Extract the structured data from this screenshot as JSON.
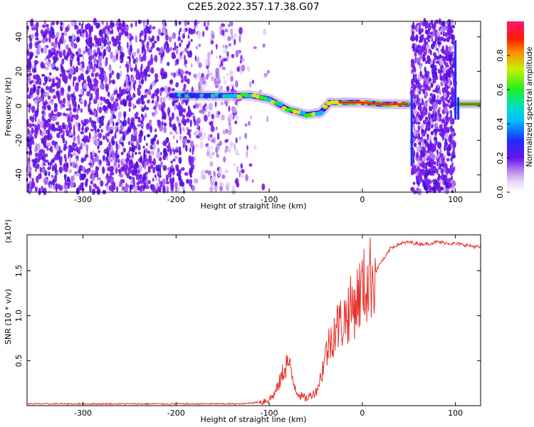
{
  "title": "C2E5.2022.357.17.38.G07",
  "chart_data": [
    {
      "type": "heatmap",
      "xlabel": "Height of straight line (km)",
      "ylabel": "Frequency (Hz)",
      "xlim": [
        -360,
        127
      ],
      "ylim": [
        -50,
        49
      ],
      "xticks": [
        -300,
        -200,
        -100,
        0,
        100
      ],
      "yticks": [
        -40,
        -20,
        0,
        20,
        40
      ],
      "colorbar": {
        "label": "Normalized spectral amplitude",
        "range": [
          0.0,
          1.0
        ],
        "ticks": [
          "0.0",
          "0.2",
          "0.4",
          "0.6",
          "0.8"
        ],
        "colormap": "hsv-rainbow (white-lavender-purple-blue-cyan-green-yellow-red-magenta)"
      },
      "ridge_line": {
        "x": [
          -205,
          -160,
          -140,
          -120,
          -100,
          -80,
          -60,
          -45,
          -35,
          -20,
          0,
          20,
          50
        ],
        "y": [
          6,
          6,
          6,
          6,
          4,
          -2,
          -5,
          -4,
          2,
          2,
          2,
          1,
          1
        ]
      },
      "tone_line_x_gt_100": 1
    },
    {
      "type": "line",
      "xlabel": "Height of straight line (km)",
      "ylabel": "SNR (10 * v/v)",
      "y_multiplier": "(x10⁴)",
      "xlim": [
        -360,
        127
      ],
      "ylim": [
        0,
        1.9
      ],
      "xticks": [
        -300,
        -200,
        -100,
        0,
        100
      ],
      "yticks": [
        "0.5",
        "1.0",
        "1.5"
      ],
      "series": [
        {
          "color": "#e8302a",
          "x": [
            -360,
            -300,
            -200,
            -130,
            -110,
            -100,
            -95,
            -90,
            -85,
            -80,
            -75,
            -70,
            -65,
            -60,
            -55,
            -50,
            -45,
            -40,
            -35,
            -30,
            -25,
            -20,
            -15,
            -10,
            -5,
            0,
            5,
            10,
            15,
            20,
            25,
            30,
            40,
            50,
            60,
            70,
            80,
            90,
            100,
            110,
            120,
            127
          ],
          "y": [
            0.02,
            0.02,
            0.02,
            0.02,
            0.04,
            0.07,
            0.12,
            0.22,
            0.38,
            0.5,
            0.3,
            0.15,
            0.1,
            0.08,
            0.12,
            0.15,
            0.3,
            0.55,
            0.7,
            0.85,
            0.9,
            0.95,
            1.05,
            1.1,
            1.2,
            1.3,
            1.35,
            1.45,
            1.5,
            1.6,
            1.65,
            1.75,
            1.8,
            1.82,
            1.8,
            1.8,
            1.82,
            1.81,
            1.8,
            1.79,
            1.77,
            1.76
          ]
        }
      ]
    }
  ]
}
